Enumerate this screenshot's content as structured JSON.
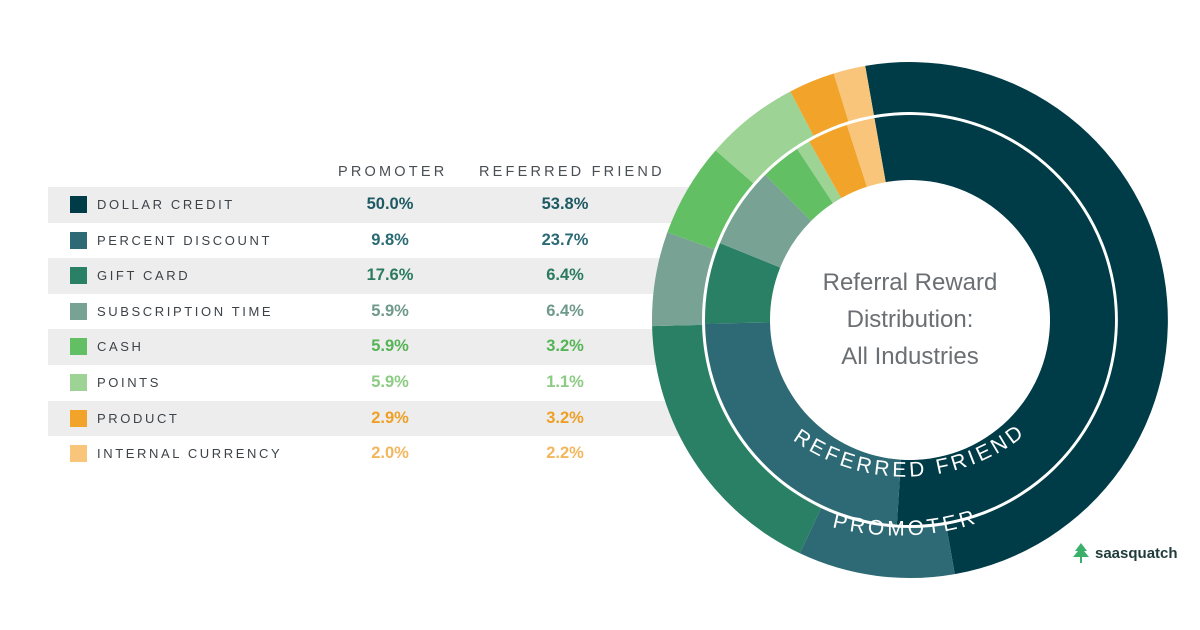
{
  "chart_data": {
    "type": "donut",
    "title": "Referral Reward Distribution: All Industries",
    "title_lines": [
      "Referral Reward",
      "Distribution:",
      "All Industries"
    ],
    "columns": [
      "PROMOTER",
      "REFERRED FRIEND"
    ],
    "rings": [
      "REFERRED FRIEND",
      "PROMOTER"
    ],
    "categories": [
      {
        "name": "DOLLAR CREDIT",
        "color": "#003c47",
        "value_color": "#1e5a63",
        "promoter": 50.0,
        "friend": 53.8,
        "promoter_label": "50.0%",
        "friend_label": "53.8%"
      },
      {
        "name": "PERCENT DISCOUNT",
        "color": "#2d6a75",
        "value_color": "#2a6a74",
        "promoter": 9.8,
        "friend": 23.7,
        "promoter_label": "9.8%",
        "friend_label": "23.7%"
      },
      {
        "name": "GIFT CARD",
        "color": "#2a8065",
        "value_color": "#2a7a60",
        "promoter": 17.6,
        "friend": 6.4,
        "promoter_label": "17.6%",
        "friend_label": "6.4%"
      },
      {
        "name": "SUBSCRIPTION TIME",
        "color": "#78a293",
        "value_color": "#6f9a8b",
        "promoter": 5.9,
        "friend": 6.4,
        "promoter_label": "5.9%",
        "friend_label": "6.4%"
      },
      {
        "name": "CASH",
        "color": "#63bf63",
        "value_color": "#55b455",
        "promoter": 5.9,
        "friend": 3.2,
        "promoter_label": "5.9%",
        "friend_label": "3.2%"
      },
      {
        "name": "POINTS",
        "color": "#9dd394",
        "value_color": "#8ccb83",
        "promoter": 5.9,
        "friend": 1.1,
        "promoter_label": "5.9%",
        "friend_label": "1.1%"
      },
      {
        "name": "PRODUCT",
        "color": "#f2a42a",
        "value_color": "#eea026",
        "promoter": 2.9,
        "friend": 3.2,
        "promoter_label": "2.9%",
        "friend_label": "3.2%"
      },
      {
        "name": "INTERNAL CURRENCY",
        "color": "#f8c57a",
        "value_color": "#f2b75c",
        "promoter": 2.0,
        "friend": 2.2,
        "promoter_label": "2.0%",
        "friend_label": "2.2%"
      }
    ]
  },
  "brand": {
    "name": "saasquatch"
  }
}
